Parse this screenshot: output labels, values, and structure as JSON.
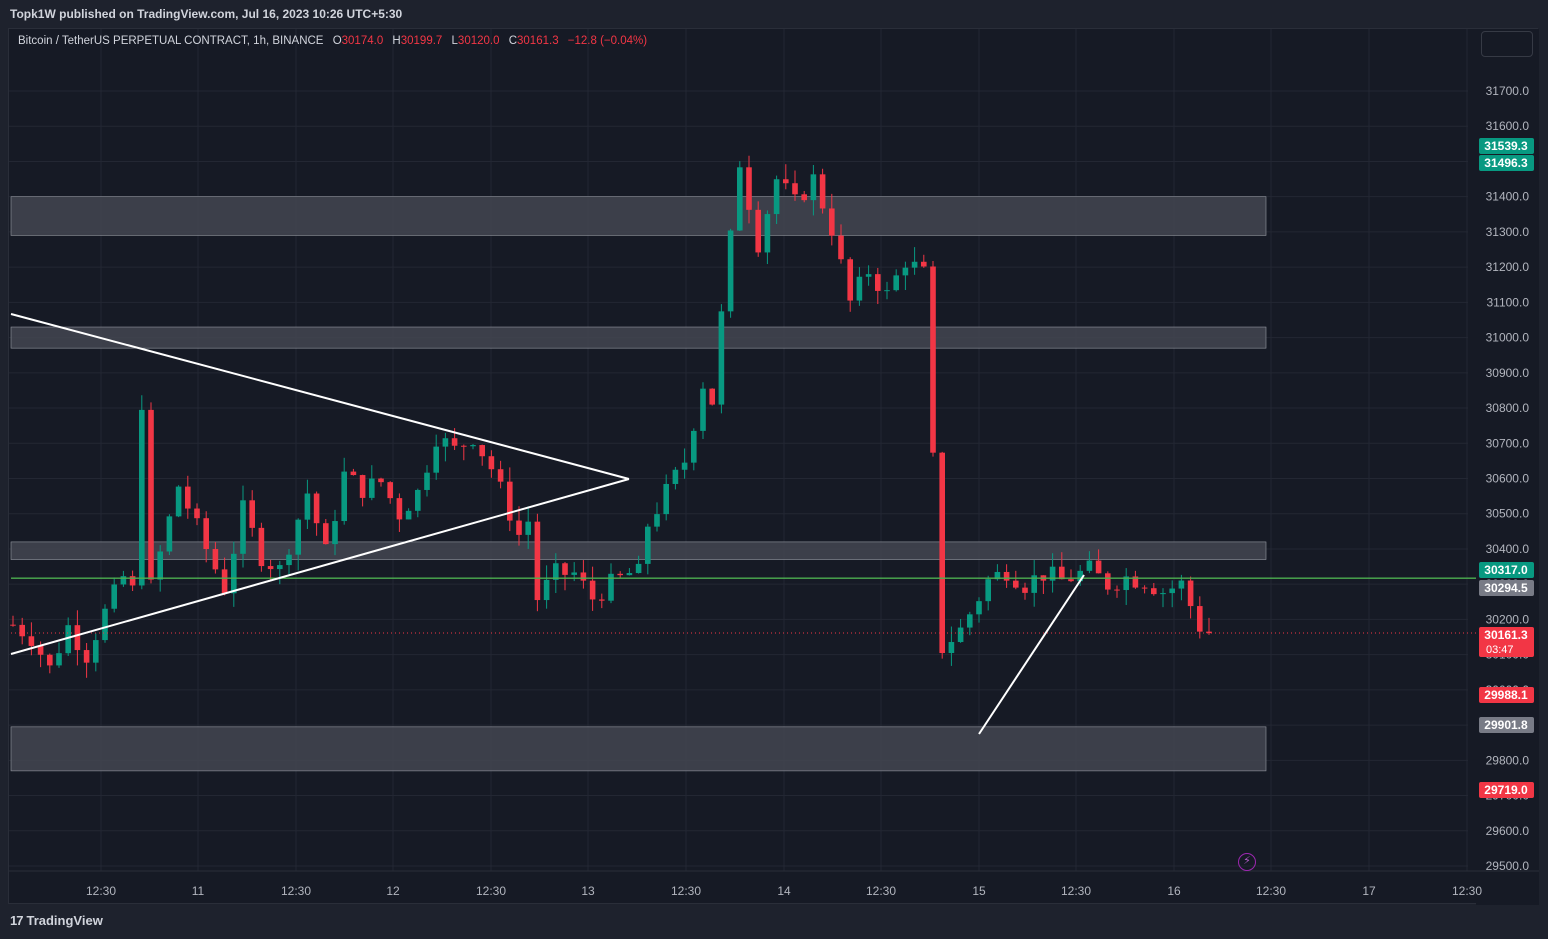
{
  "header": {
    "publisher": "Topk1W published on TradingView.com, Jul 16, 2023 10:26 UTC+5:30"
  },
  "legend": {
    "symbol": "Bitcoin / TetherUS PERPETUAL CONTRACT, 1h, BINANCE",
    "open_label": "O",
    "open": "30174.0",
    "high_label": "H",
    "high": "30199.7",
    "low_label": "L",
    "low": "30120.0",
    "close_label": "C",
    "close": "30161.3",
    "change": "−12.8 (−0.04%)"
  },
  "footer": {
    "brand": "TradingView",
    "brand_icon": "tradingview-logo-icon"
  },
  "chart_data": {
    "type": "candlestick",
    "timeframe": "1h",
    "ylim": [
      29460,
      31660
    ],
    "x_ticks": [
      "12:30",
      "11",
      "12:30",
      "12",
      "12:30",
      "13",
      "12:30",
      "14",
      "12:30",
      "15",
      "12:30",
      "16",
      "12:30",
      "17",
      "12:30"
    ],
    "y_ticks": [
      29500,
      29600,
      29700,
      29800,
      29900,
      30000,
      30100,
      30200,
      30300,
      30400,
      30500,
      30600,
      30700,
      30800,
      30900,
      31000,
      31100,
      31200,
      31300,
      31400,
      31500,
      31600,
      31700
    ],
    "price_badges": [
      {
        "label": "31539.3",
        "color": "#089981"
      },
      {
        "label": "31496.3",
        "color": "#089981"
      },
      {
        "label": "30317.0",
        "color": "#089981"
      },
      {
        "label": "30294.5",
        "color": "#787b86"
      },
      {
        "label": "30161.3",
        "sub": "03:47",
        "color": "#f23645"
      },
      {
        "label": "29988.1",
        "color": "#f23645"
      },
      {
        "label": "29901.8",
        "color": "#787b86"
      },
      {
        "label": "29719.0",
        "color": "#f23645"
      }
    ],
    "zones": [
      [
        31290,
        31400
      ],
      [
        30970,
        31030
      ],
      [
        30370,
        30420
      ],
      [
        29770,
        29895
      ]
    ],
    "horizontal_line": 30317.0,
    "last_price": 30161.3,
    "trend_lines": [
      {
        "from": [
          "Jul 10 07:00",
          31065
        ],
        "to": [
          "Jul 13 13:00",
          30600
        ]
      },
      {
        "from": [
          "Jul 10 07:00",
          30125
        ],
        "to": [
          "Jul 13 13:00",
          30600
        ]
      },
      {
        "from": [
          "Jul 15 00:00",
          29880
        ],
        "to": [
          "Jul 15 06:00",
          30300
        ]
      }
    ],
    "anchors": [
      {
        "path": [
          [
            30185,
            0
          ],
          [
            30150,
            2
          ],
          [
            30060,
            4
          ],
          [
            30180,
            6
          ],
          [
            30100,
            8
          ],
          [
            30220,
            10
          ],
          [
            30320,
            12
          ],
          [
            30280,
            13
          ],
          [
            30820,
            14
          ],
          [
            30290,
            15
          ],
          [
            30580,
            18
          ],
          [
            30400,
            21
          ],
          [
            30290,
            23
          ],
          [
            30510,
            25
          ],
          [
            30380,
            27
          ],
          [
            30340,
            29
          ],
          [
            30560,
            32
          ],
          [
            30390,
            34
          ],
          [
            30610,
            36
          ],
          [
            30570,
            38
          ],
          [
            30590,
            40
          ],
          [
            30500,
            42
          ],
          [
            30560,
            44
          ],
          [
            30720,
            46
          ],
          [
            30680,
            48
          ],
          [
            30720,
            50
          ],
          [
            30630,
            52
          ],
          [
            30440,
            55
          ],
          [
            30480,
            56
          ],
          [
            30260,
            57
          ],
          [
            30330,
            59
          ],
          [
            30330,
            61
          ],
          [
            30260,
            63
          ],
          [
            30300,
            65
          ],
          [
            30330,
            67
          ],
          [
            30330,
            68
          ],
          [
            30470,
            69
          ],
          [
            30560,
            71
          ],
          [
            30650,
            73
          ],
          [
            30870,
            75
          ],
          [
            30820,
            76
          ],
          [
            31060,
            77
          ],
          [
            31500,
            79
          ],
          [
            31270,
            81
          ],
          [
            31450,
            83
          ],
          [
            31380,
            85
          ],
          [
            31450,
            87
          ],
          [
            31310,
            89
          ],
          [
            31100,
            91
          ],
          [
            31190,
            93
          ],
          [
            31120,
            95
          ],
          [
            31220,
            97
          ],
          [
            31180,
            99
          ],
          [
            30650,
            100
          ],
          [
            30120,
            101
          ],
          [
            30170,
            103
          ],
          [
            30310,
            106
          ],
          [
            30340,
            108
          ],
          [
            30300,
            110
          ],
          [
            30330,
            112
          ],
          [
            30310,
            114
          ],
          [
            30340,
            117
          ],
          [
            30300,
            119
          ],
          [
            30320,
            121
          ],
          [
            30310,
            123
          ],
          [
            30280,
            125
          ],
          [
            30300,
            127
          ],
          [
            30180,
            129
          ],
          [
            30161,
            130
          ]
        ]
      }
    ]
  }
}
